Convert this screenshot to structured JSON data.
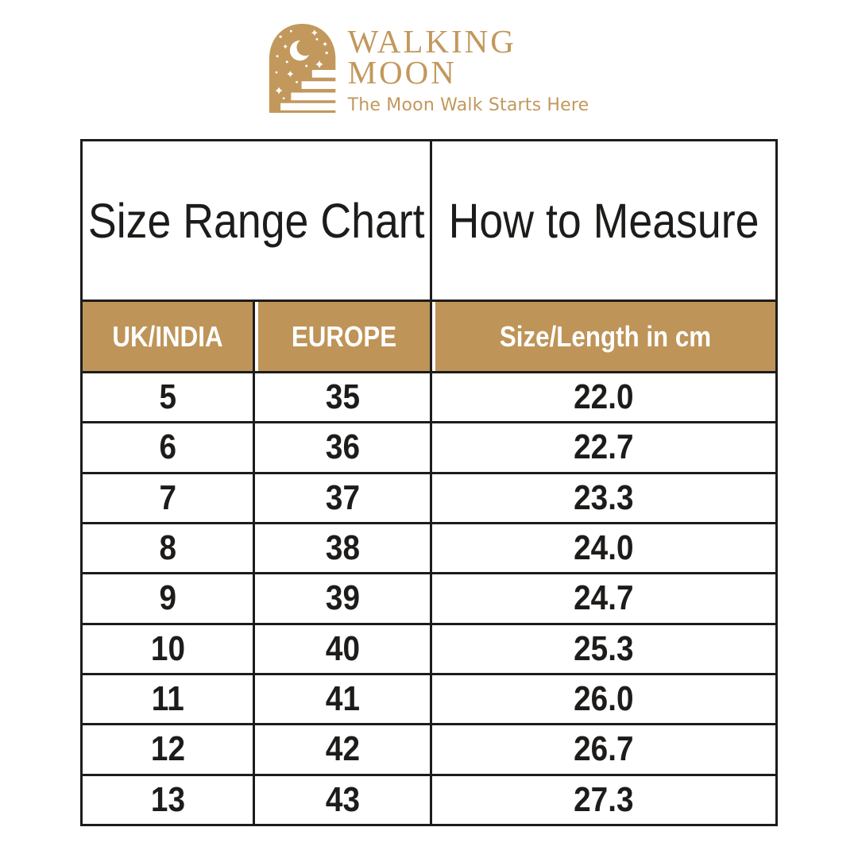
{
  "brand": {
    "name_line1": "WALKING",
    "name_line2": "MOON",
    "tagline": "The Moon Walk Starts Here"
  },
  "colors": {
    "logo_tan": "#C2985C",
    "table_tan": "#BE9458",
    "line_black": "#1E1C1A",
    "header_text_white": "#FFFFFF"
  },
  "table": {
    "section_headers": {
      "left": "Size Range Chart",
      "right": "How to Measure"
    },
    "column_headers": [
      "UK/INDIA",
      "EUROPE",
      "Size/Length in cm"
    ],
    "rows": [
      [
        "5",
        "35",
        "22.0"
      ],
      [
        "6",
        "36",
        "22.7"
      ],
      [
        "7",
        "37",
        "23.3"
      ],
      [
        "8",
        "38",
        "24.0"
      ],
      [
        "9",
        "39",
        "24.7"
      ],
      [
        "10",
        "40",
        "25.3"
      ],
      [
        "11",
        "41",
        "26.0"
      ],
      [
        "12",
        "42",
        "26.7"
      ],
      [
        "13",
        "43",
        "27.3"
      ]
    ]
  },
  "chart_data": {
    "type": "table",
    "title": "Size Range Chart / How to Measure",
    "columns": [
      "UK/INDIA",
      "EUROPE",
      "Size/Length in cm"
    ],
    "uk_india_sizes": [
      5,
      6,
      7,
      8,
      9,
      10,
      11,
      12,
      13
    ],
    "europe_sizes": [
      35,
      36,
      37,
      38,
      39,
      40,
      41,
      42,
      43
    ],
    "length_cm": [
      22.0,
      22.7,
      23.3,
      24.0,
      24.7,
      25.3,
      26.0,
      26.7,
      27.3
    ]
  }
}
